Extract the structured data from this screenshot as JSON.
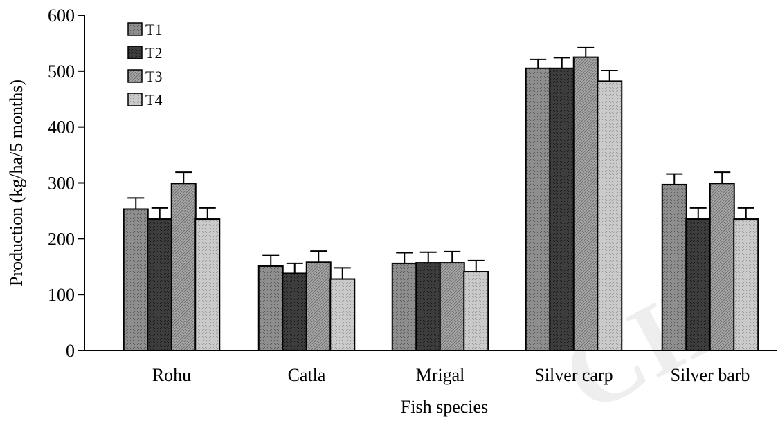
{
  "chart_data": {
    "type": "bar",
    "title": "",
    "xlabel": "Fish species",
    "ylabel": "Production (kg/ha/5 months)",
    "ylim": [
      0,
      600
    ],
    "yticks": [
      0,
      100,
      200,
      300,
      400,
      500,
      600
    ],
    "categories": [
      "Rohu",
      "Catla",
      "Mrigal",
      "Silver carp",
      "Silver barb"
    ],
    "series": [
      {
        "name": "T1",
        "color": "#8a8a8a",
        "values": [
          253,
          151,
          156,
          505,
          297
        ],
        "errors": [
          20,
          19,
          19,
          16,
          19
        ]
      },
      {
        "name": "T2",
        "color": "#3a3a3a",
        "values": [
          235,
          138,
          157,
          505,
          235
        ],
        "errors": [
          20,
          18,
          19,
          19,
          20
        ]
      },
      {
        "name": "T3",
        "color": "#a2a2a2",
        "values": [
          299,
          158,
          157,
          525,
          299
        ],
        "errors": [
          20,
          20,
          20,
          17,
          20
        ]
      },
      {
        "name": "T4",
        "color": "#c6c6c6",
        "values": [
          235,
          128,
          141,
          482,
          235
        ],
        "errors": [
          20,
          20,
          20,
          19,
          20
        ]
      }
    ],
    "legend_position": "top-left",
    "error_bars": true,
    "grid": false
  },
  "watermark": {
    "text": "CID"
  }
}
